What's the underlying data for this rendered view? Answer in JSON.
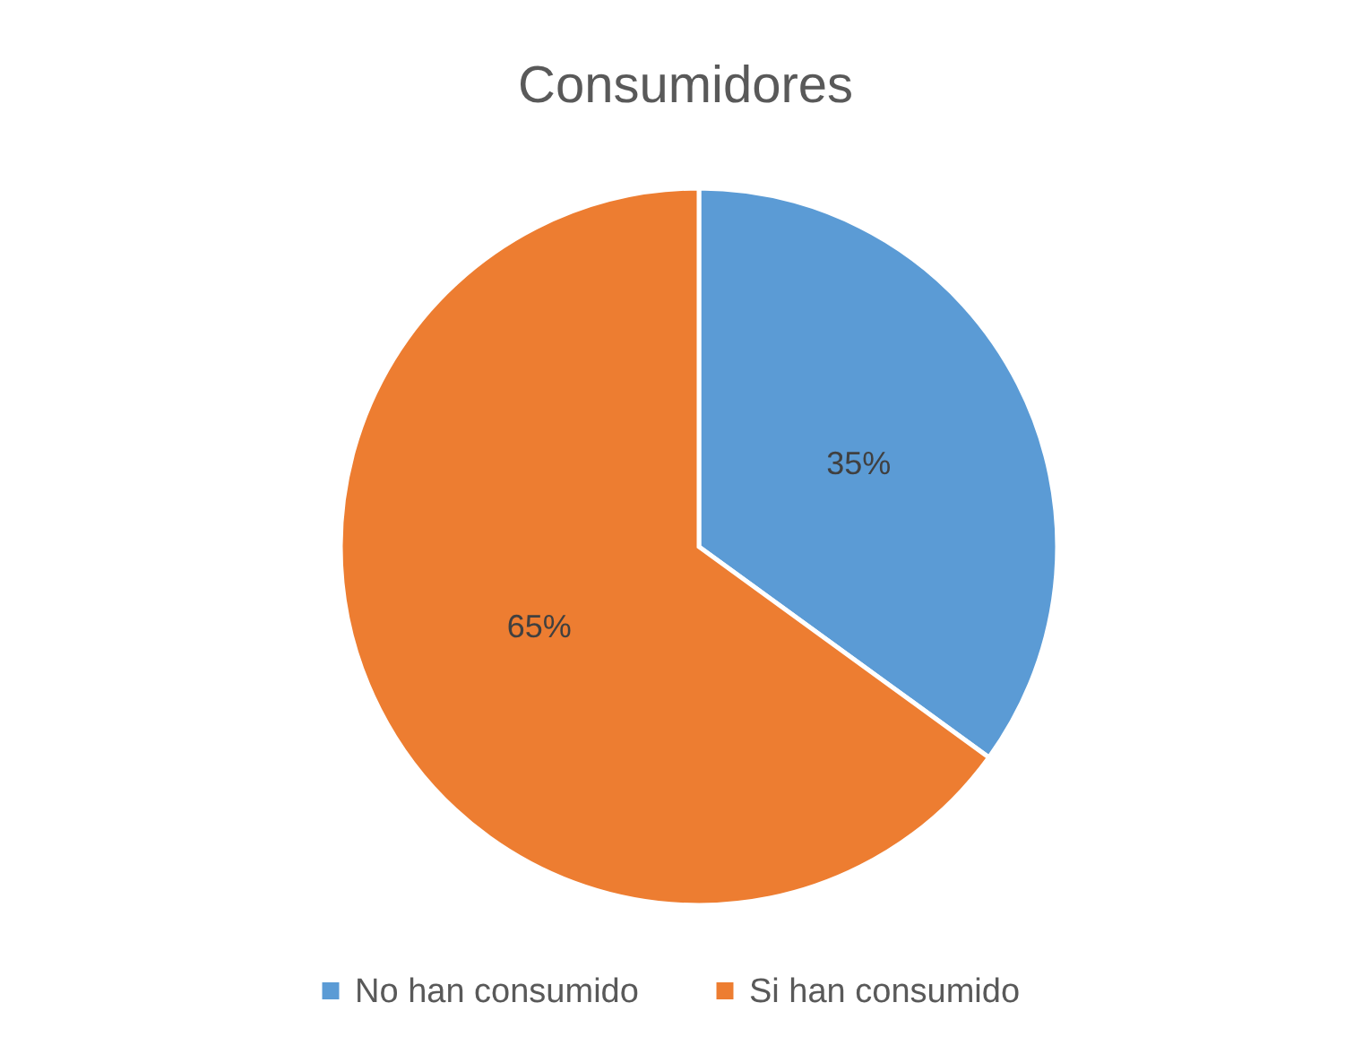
{
  "chart_data": {
    "type": "pie",
    "title": "Consumidores",
    "categories": [
      "No han consumido",
      "Si han consumido"
    ],
    "values": [
      35,
      65
    ],
    "colors": [
      "#5b9bd5",
      "#ed7d31"
    ],
    "value_labels": [
      "35%",
      "65%"
    ],
    "legend": "bottom"
  }
}
